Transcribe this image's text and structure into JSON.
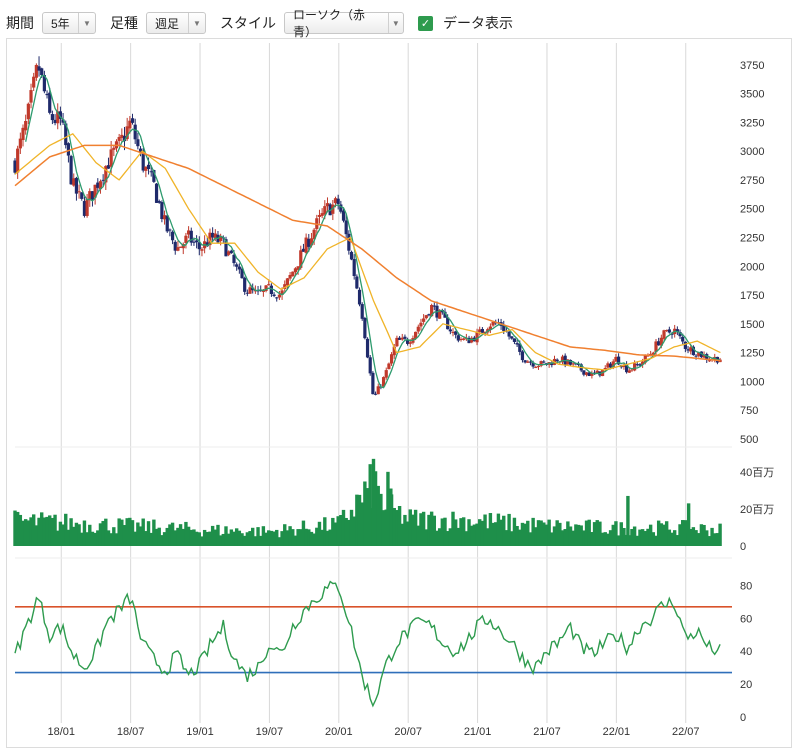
{
  "toolbar": {
    "period_label": "期間",
    "period_value": "5年",
    "interval_label": "足種",
    "interval_value": "週足",
    "style_label": "スタイル",
    "style_value": "ローソク（赤青）",
    "data_display_label": "データ表示",
    "data_display_checked": true
  },
  "colors": {
    "candle_up": "#c0392b",
    "candle_down": "#1f2a6b",
    "ma_short": "#2e9b6e",
    "ma_mid": "#f0b429",
    "ma_long": "#f08030",
    "volume": "#1e8f4a",
    "rsi": "#2e9b4e",
    "rsi_upper_line": "#d9532b",
    "rsi_lower_line": "#2f6fba",
    "grid": "#d8d8d8"
  },
  "chart_data": [
    {
      "type": "candlestick",
      "name": "price",
      "y_ticks": [
        "3750",
        "3500",
        "3250",
        "3000",
        "2750",
        "2500",
        "2250",
        "2000",
        "1750",
        "1500",
        "1250",
        "1000",
        "750",
        "500"
      ],
      "y_tick_values": [
        3750,
        3500,
        3250,
        3000,
        2750,
        2500,
        2250,
        2000,
        1750,
        1500,
        1250,
        1000,
        750,
        500
      ],
      "ylim": [
        500,
        3800
      ],
      "x_ticks": [
        "18/01",
        "18/07",
        "19/01",
        "19/07",
        "20/01",
        "20/07",
        "21/01",
        "21/07",
        "22/01",
        "22/07"
      ],
      "xlim": [
        "2017-09",
        "2022-10"
      ],
      "grid": true,
      "close_path": [
        [
          "2017-09",
          2900
        ],
        [
          "2017-10",
          3250
        ],
        [
          "2017-11",
          3750
        ],
        [
          "2017-12",
          3300
        ],
        [
          "2018-01",
          3250
        ],
        [
          "2018-02",
          2700
        ],
        [
          "2018-03",
          2500
        ],
        [
          "2018-04",
          2700
        ],
        [
          "2018-05",
          2900
        ],
        [
          "2018-06",
          3050
        ],
        [
          "2018-07",
          3250
        ],
        [
          "2018-08",
          2900
        ],
        [
          "2018-09",
          2700
        ],
        [
          "2018-10",
          2350
        ],
        [
          "2018-11",
          2150
        ],
        [
          "2018-12",
          2250
        ],
        [
          "2019-01",
          2150
        ],
        [
          "2019-02",
          2250
        ],
        [
          "2019-03",
          2200
        ],
        [
          "2019-04",
          2000
        ],
        [
          "2019-05",
          1800
        ],
        [
          "2019-06",
          1750
        ],
        [
          "2019-07",
          1800
        ],
        [
          "2019-08",
          1750
        ],
        [
          "2019-09",
          1950
        ],
        [
          "2019-10",
          2150
        ],
        [
          "2019-11",
          2350
        ],
        [
          "2019-12",
          2500
        ],
        [
          "2020-01",
          2550
        ],
        [
          "2020-02",
          2100
        ],
        [
          "2020-03",
          1600
        ],
        [
          "2020-04",
          850
        ],
        [
          "2020-05",
          1050
        ],
        [
          "2020-06",
          1350
        ],
        [
          "2020-07",
          1350
        ],
        [
          "2020-08",
          1500
        ],
        [
          "2020-09",
          1650
        ],
        [
          "2020-10",
          1550
        ],
        [
          "2020-11",
          1400
        ],
        [
          "2020-12",
          1350
        ],
        [
          "2021-01",
          1400
        ],
        [
          "2021-02",
          1500
        ],
        [
          "2021-03",
          1500
        ],
        [
          "2021-04",
          1350
        ],
        [
          "2021-05",
          1200
        ],
        [
          "2021-06",
          1150
        ],
        [
          "2021-07",
          1150
        ],
        [
          "2021-08",
          1200
        ],
        [
          "2021-09",
          1150
        ],
        [
          "2021-10",
          1100
        ],
        [
          "2021-11",
          1050
        ],
        [
          "2021-12",
          1100
        ],
        [
          "2022-01",
          1200
        ],
        [
          "2022-02",
          1100
        ],
        [
          "2022-03",
          1150
        ],
        [
          "2022-04",
          1250
        ],
        [
          "2022-05",
          1400
        ],
        [
          "2022-06",
          1450
        ],
        [
          "2022-07",
          1300
        ],
        [
          "2022-08",
          1250
        ],
        [
          "2022-09",
          1200
        ],
        [
          "2022-10",
          1200
        ]
      ],
      "ma_long_path": [
        [
          "2017-09",
          2700
        ],
        [
          "2017-12",
          2950
        ],
        [
          "2018-03",
          3050
        ],
        [
          "2018-06",
          3050
        ],
        [
          "2018-09",
          2950
        ],
        [
          "2018-12",
          2850
        ],
        [
          "2019-03",
          2700
        ],
        [
          "2019-06",
          2550
        ],
        [
          "2019-09",
          2400
        ],
        [
          "2019-12",
          2350
        ],
        [
          "2020-03",
          2150
        ],
        [
          "2020-06",
          1900
        ],
        [
          "2020-09",
          1700
        ],
        [
          "2020-12",
          1600
        ],
        [
          "2021-03",
          1500
        ],
        [
          "2021-06",
          1400
        ],
        [
          "2021-09",
          1300
        ],
        [
          "2021-12",
          1270
        ],
        [
          "2022-03",
          1230
        ],
        [
          "2022-06",
          1220
        ],
        [
          "2022-10",
          1180
        ]
      ],
      "ma_mid_path": [
        [
          "2017-09",
          2800
        ],
        [
          "2017-12",
          3050
        ],
        [
          "2018-02",
          3150
        ],
        [
          "2018-04",
          2900
        ],
        [
          "2018-06",
          2750
        ],
        [
          "2018-08",
          3000
        ],
        [
          "2018-10",
          2850
        ],
        [
          "2018-12",
          2500
        ],
        [
          "2019-02",
          2200
        ],
        [
          "2019-04",
          2200
        ],
        [
          "2019-06",
          1950
        ],
        [
          "2019-08",
          1800
        ],
        [
          "2019-10",
          1900
        ],
        [
          "2019-12",
          2150
        ],
        [
          "2020-02",
          2250
        ],
        [
          "2020-04",
          1700
        ],
        [
          "2020-06",
          1250
        ],
        [
          "2020-08",
          1300
        ],
        [
          "2020-10",
          1500
        ],
        [
          "2020-12",
          1450
        ],
        [
          "2021-02",
          1400
        ],
        [
          "2021-04",
          1450
        ],
        [
          "2021-06",
          1250
        ],
        [
          "2021-08",
          1150
        ],
        [
          "2021-10",
          1120
        ],
        [
          "2021-12",
          1100
        ],
        [
          "2022-02",
          1150
        ],
        [
          "2022-04",
          1200
        ],
        [
          "2022-06",
          1300
        ],
        [
          "2022-08",
          1350
        ],
        [
          "2022-10",
          1250
        ]
      ]
    },
    {
      "type": "bar",
      "name": "volume",
      "y_ticks": [
        "40百万",
        "20百万",
        "0"
      ],
      "y_tick_values": [
        40,
        20,
        0
      ],
      "ylim": [
        0,
        48
      ],
      "unit": "百万",
      "profile": [
        [
          "2017-09",
          14
        ],
        [
          "2018-01",
          13
        ],
        [
          "2018-07",
          11
        ],
        [
          "2019-01",
          9
        ],
        [
          "2019-07",
          8
        ],
        [
          "2020-01",
          12
        ],
        [
          "2020-04",
          34
        ],
        [
          "2020-05",
          22
        ],
        [
          "2020-07",
          15
        ],
        [
          "2021-01",
          14
        ],
        [
          "2021-07",
          11
        ],
        [
          "2022-01",
          10
        ],
        [
          "2022-07",
          10
        ],
        [
          "2022-10",
          9
        ]
      ],
      "spikes": [
        [
          "2020-04",
          47
        ],
        [
          "2020-05",
          40
        ],
        [
          "2020-05",
          31
        ],
        [
          "2022-02",
          27
        ],
        [
          "2022-07",
          23
        ]
      ]
    },
    {
      "type": "line",
      "name": "oscillator",
      "y_ticks": [
        "80",
        "60",
        "40",
        "20",
        "0"
      ],
      "y_tick_values": [
        80,
        60,
        40,
        20,
        0
      ],
      "ylim": [
        0,
        90
      ],
      "upper_band": 67,
      "lower_band": 27,
      "points": [
        [
          "2017-09",
          38
        ],
        [
          "2017-10",
          55
        ],
        [
          "2017-11",
          73
        ],
        [
          "2017-12",
          50
        ],
        [
          "2018-01",
          55
        ],
        [
          "2018-02",
          38
        ],
        [
          "2018-03",
          30
        ],
        [
          "2018-04",
          40
        ],
        [
          "2018-05",
          58
        ],
        [
          "2018-06",
          65
        ],
        [
          "2018-07",
          73
        ],
        [
          "2018-08",
          45
        ],
        [
          "2018-09",
          35
        ],
        [
          "2018-10",
          28
        ],
        [
          "2018-11",
          38
        ],
        [
          "2018-12",
          25
        ],
        [
          "2019-01",
          32
        ],
        [
          "2019-02",
          45
        ],
        [
          "2019-03",
          55
        ],
        [
          "2019-04",
          35
        ],
        [
          "2019-05",
          25
        ],
        [
          "2019-06",
          30
        ],
        [
          "2019-07",
          45
        ],
        [
          "2019-08",
          38
        ],
        [
          "2019-09",
          55
        ],
        [
          "2019-10",
          65
        ],
        [
          "2019-11",
          72
        ],
        [
          "2019-12",
          78
        ],
        [
          "2020-01",
          80
        ],
        [
          "2020-02",
          55
        ],
        [
          "2020-03",
          25
        ],
        [
          "2020-04",
          8
        ],
        [
          "2020-05",
          30
        ],
        [
          "2020-06",
          45
        ],
        [
          "2020-07",
          52
        ],
        [
          "2020-08",
          58
        ],
        [
          "2020-09",
          55
        ],
        [
          "2020-10",
          45
        ],
        [
          "2020-11",
          40
        ],
        [
          "2020-12",
          45
        ],
        [
          "2021-01",
          55
        ],
        [
          "2021-02",
          60
        ],
        [
          "2021-03",
          52
        ],
        [
          "2021-04",
          45
        ],
        [
          "2021-05",
          35
        ],
        [
          "2021-06",
          30
        ],
        [
          "2021-07",
          40
        ],
        [
          "2021-08",
          45
        ],
        [
          "2021-09",
          55
        ],
        [
          "2021-10",
          42
        ],
        [
          "2021-11",
          38
        ],
        [
          "2021-12",
          45
        ],
        [
          "2022-01",
          50
        ],
        [
          "2022-02",
          42
        ],
        [
          "2022-03",
          55
        ],
        [
          "2022-04",
          60
        ],
        [
          "2022-05",
          68
        ],
        [
          "2022-06",
          70
        ],
        [
          "2022-07",
          48
        ],
        [
          "2022-08",
          52
        ],
        [
          "2022-09",
          42
        ],
        [
          "2022-10",
          40
        ]
      ]
    }
  ]
}
